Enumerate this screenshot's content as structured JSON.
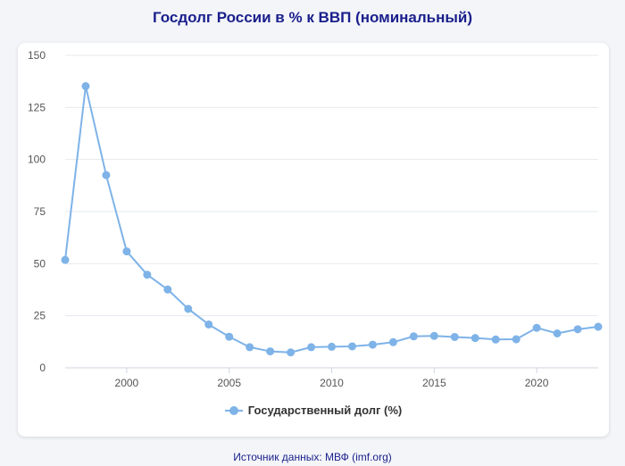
{
  "title": "Госдолг России в % к ВВП (номинальный)",
  "source": "Источник данных: МВФ (imf.org)",
  "chart_data": {
    "type": "line",
    "title": "Госдолг России в % к ВВП (номинальный)",
    "xlabel": "",
    "ylabel": "",
    "x": [
      1997,
      1998,
      1999,
      2000,
      2001,
      2002,
      2003,
      2004,
      2005,
      2006,
      2007,
      2008,
      2009,
      2010,
      2011,
      2012,
      2013,
      2014,
      2015,
      2016,
      2017,
      2018,
      2019,
      2020,
      2021,
      2022,
      2023
    ],
    "series": [
      {
        "name": "Государственный долг (%)",
        "color": "#7eb3e8",
        "values": [
          51.8,
          135.2,
          92.5,
          55.9,
          44.7,
          37.6,
          28.3,
          20.8,
          14.9,
          9.9,
          7.9,
          7.4,
          9.9,
          10.1,
          10.3,
          11.1,
          12.3,
          15.1,
          15.3,
          14.8,
          14.3,
          13.6,
          13.7,
          19.2,
          16.5,
          18.5,
          19.7
        ]
      }
    ],
    "xlim": [
      1997,
      2023
    ],
    "ylim": [
      0,
      150
    ],
    "xticks": [
      2000,
      2005,
      2010,
      2015,
      2020
    ],
    "yticks": [
      0,
      25,
      50,
      75,
      100,
      125,
      150
    ],
    "grid": true,
    "legend": "bottom-center"
  }
}
